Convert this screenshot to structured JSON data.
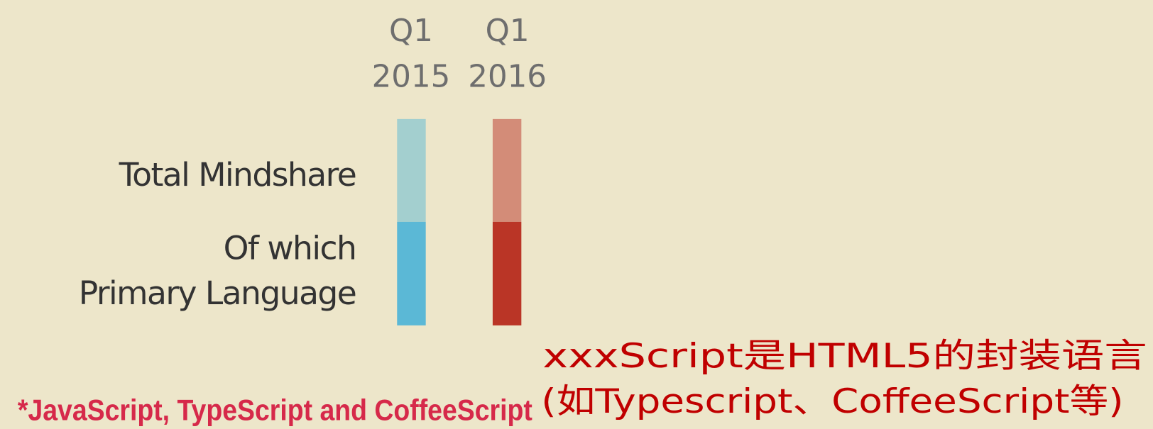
{
  "columns": [
    {
      "quarter": "Q1",
      "year": "2015"
    },
    {
      "quarter": "Q1",
      "year": "2016"
    }
  ],
  "rows": {
    "total": "Total Mindshare",
    "primary": [
      "Of which",
      "Primary Language"
    ]
  },
  "footnote": "*JavaScript, TypeScript and CoffeeScript",
  "annotation": [
    "xxxScript是HTML5的封装语言",
    "(如Typescript、CoffeeScript等)"
  ]
}
